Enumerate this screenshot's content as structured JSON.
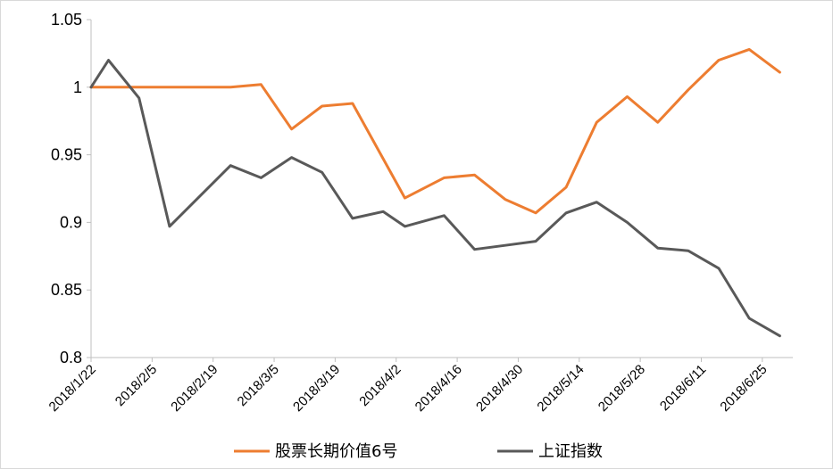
{
  "chart_data": {
    "type": "line",
    "title": "",
    "xlabel": "",
    "ylabel": "",
    "ylim": [
      0.8,
      1.05
    ],
    "y_ticks": [
      "1.05",
      "1",
      "0.95",
      "0.9",
      "0.85",
      "0.8"
    ],
    "x_tick_labels": [
      "2018/1/22",
      "2018/2/5",
      "2018/2/19",
      "2018/3/5",
      "2018/3/19",
      "2018/4/2",
      "2018/4/16",
      "2018/4/30",
      "2018/5/14",
      "2018/5/28",
      "2018/6/11",
      "2018/6/25"
    ],
    "x_range": [
      "2018/1/22",
      "2018/7/2"
    ],
    "grid": false,
    "legend_position": "bottom",
    "series": [
      {
        "name": "股票长期价值6号",
        "color": "#ED7D31",
        "points": [
          [
            "2018/1/22",
            1.0
          ],
          [
            "2018/2/9",
            1.0
          ],
          [
            "2018/2/23",
            1.0
          ],
          [
            "2018/3/2",
            1.002
          ],
          [
            "2018/3/9",
            0.969
          ],
          [
            "2018/3/16",
            0.986
          ],
          [
            "2018/3/23",
            0.988
          ],
          [
            "2018/4/4",
            0.918
          ],
          [
            "2018/4/13",
            0.933
          ],
          [
            "2018/4/20",
            0.935
          ],
          [
            "2018/4/27",
            0.917
          ],
          [
            "2018/5/4",
            0.907
          ],
          [
            "2018/5/11",
            0.926
          ],
          [
            "2018/5/18",
            0.974
          ],
          [
            "2018/5/25",
            0.993
          ],
          [
            "2018/6/1",
            0.974
          ],
          [
            "2018/6/8",
            0.998
          ],
          [
            "2018/6/15",
            1.02
          ],
          [
            "2018/6/22",
            1.028
          ],
          [
            "2018/6/29",
            1.011
          ]
        ]
      },
      {
        "name": "上证指数",
        "color": "#595959",
        "points": [
          [
            "2018/1/22",
            1.0
          ],
          [
            "2018/1/26",
            1.02
          ],
          [
            "2018/2/2",
            0.992
          ],
          [
            "2018/2/9",
            0.897
          ],
          [
            "2018/2/23",
            0.942
          ],
          [
            "2018/3/2",
            0.933
          ],
          [
            "2018/3/9",
            0.948
          ],
          [
            "2018/3/16",
            0.937
          ],
          [
            "2018/3/23",
            0.903
          ],
          [
            "2018/3/30",
            0.908
          ],
          [
            "2018/4/4",
            0.897
          ],
          [
            "2018/4/13",
            0.905
          ],
          [
            "2018/4/20",
            0.88
          ],
          [
            "2018/4/27",
            0.883
          ],
          [
            "2018/5/4",
            0.886
          ],
          [
            "2018/5/11",
            0.907
          ],
          [
            "2018/5/18",
            0.915
          ],
          [
            "2018/5/25",
            0.9
          ],
          [
            "2018/6/1",
            0.881
          ],
          [
            "2018/6/8",
            0.879
          ],
          [
            "2018/6/15",
            0.866
          ],
          [
            "2018/6/22",
            0.829
          ],
          [
            "2018/6/29",
            0.816
          ]
        ]
      }
    ]
  }
}
